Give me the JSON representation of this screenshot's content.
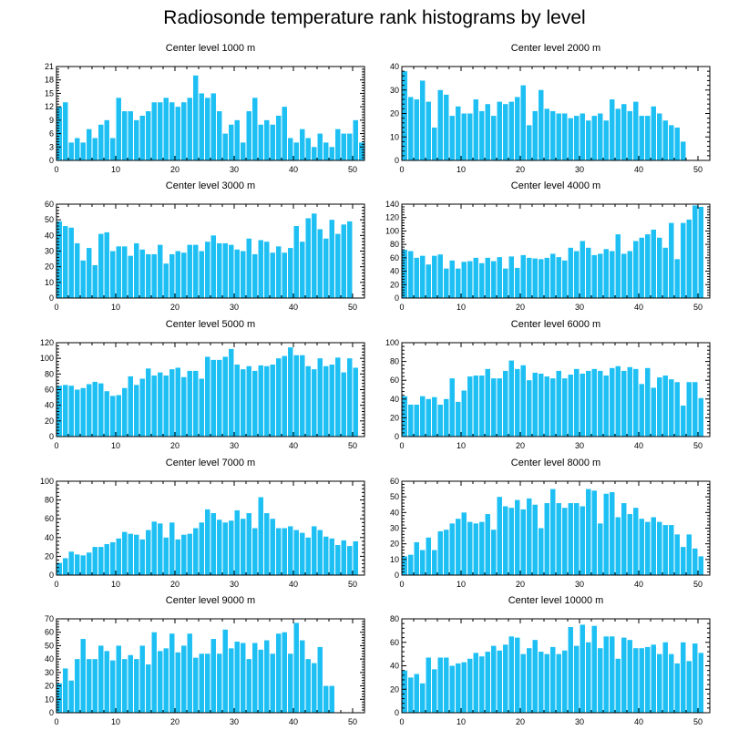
{
  "title": "Radiosonde temperature rank histograms by level",
  "colors": {
    "bar": "#1ec0f4",
    "frame": "#000000"
  },
  "chart_data": [
    {
      "type": "bar",
      "title": "Center level 1000 m",
      "xticks": [
        0,
        10,
        20,
        30,
        40,
        50
      ],
      "xlim": [
        0,
        52
      ],
      "ylim": [
        0,
        21
      ],
      "yticks": [
        0,
        3,
        6,
        9,
        12,
        15,
        18,
        21
      ],
      "values": [
        12,
        13,
        4,
        5,
        4,
        7,
        5,
        8,
        9,
        5,
        14,
        11,
        11,
        9,
        10,
        11,
        13,
        13,
        14,
        13,
        12,
        13,
        14,
        19,
        15,
        14,
        15,
        11,
        6,
        8,
        9,
        4,
        11,
        14,
        8,
        9,
        8,
        10,
        12,
        5,
        4,
        7,
        5,
        3,
        6,
        4,
        3,
        7,
        6,
        6,
        9,
        4
      ]
    },
    {
      "type": "bar",
      "title": "Center level 2000 m",
      "xticks": [
        0,
        10,
        20,
        30,
        40,
        50
      ],
      "xlim": [
        0,
        52
      ],
      "ylim": [
        0,
        40
      ],
      "yticks": [
        0,
        10,
        20,
        30,
        40
      ],
      "values": [
        38,
        27,
        26,
        34,
        25,
        14,
        30,
        28,
        19,
        23,
        20,
        20,
        26,
        21,
        24,
        19,
        25,
        24,
        25,
        27,
        32,
        15,
        21,
        30,
        22,
        21,
        20,
        20,
        18,
        19,
        20,
        17,
        19,
        20,
        17,
        26,
        22,
        24,
        21,
        25,
        19,
        19,
        23,
        20,
        17,
        15,
        14,
        8,
        0,
        0,
        0,
        0
      ]
    },
    {
      "type": "bar",
      "title": "Center level 3000 m",
      "xticks": [
        0,
        10,
        20,
        30,
        40,
        50
      ],
      "xlim": [
        0,
        52
      ],
      "ylim": [
        0,
        60
      ],
      "yticks": [
        0,
        10,
        20,
        30,
        40,
        50,
        60
      ],
      "values": [
        49,
        46,
        45,
        35,
        24,
        32,
        21,
        41,
        42,
        30,
        33,
        33,
        27,
        35,
        31,
        28,
        28,
        34,
        22,
        28,
        30,
        29,
        34,
        34,
        30,
        36,
        40,
        35,
        35,
        34,
        31,
        30,
        38,
        28,
        37,
        36,
        29,
        33,
        29,
        32,
        46,
        36,
        51,
        54,
        44,
        38,
        50,
        41,
        47,
        49,
        0,
        0
      ]
    },
    {
      "type": "bar",
      "title": "Center level 4000 m",
      "xticks": [
        0,
        10,
        20,
        30,
        40,
        50
      ],
      "xlim": [
        0,
        52
      ],
      "ylim": [
        0,
        140
      ],
      "yticks": [
        0,
        20,
        40,
        60,
        80,
        100,
        120,
        140
      ],
      "values": [
        72,
        70,
        60,
        63,
        50,
        63,
        65,
        44,
        56,
        44,
        54,
        55,
        60,
        52,
        60,
        55,
        61,
        44,
        62,
        45,
        64,
        60,
        59,
        58,
        60,
        66,
        61,
        56,
        75,
        70,
        85,
        75,
        64,
        66,
        73,
        70,
        95,
        66,
        70,
        85,
        90,
        95,
        102,
        90,
        75,
        112,
        58,
        112,
        117,
        138,
        136,
        0
      ]
    },
    {
      "type": "bar",
      "title": "Center level 5000 m",
      "xticks": [
        0,
        10,
        20,
        30,
        40,
        50
      ],
      "xlim": [
        0,
        52
      ],
      "ylim": [
        0,
        120
      ],
      "yticks": [
        0,
        20,
        40,
        60,
        80,
        100,
        120
      ],
      "values": [
        65,
        66,
        65,
        60,
        62,
        67,
        70,
        68,
        58,
        52,
        53,
        62,
        77,
        66,
        74,
        87,
        78,
        82,
        78,
        86,
        88,
        76,
        84,
        84,
        74,
        102,
        98,
        98,
        102,
        112,
        92,
        86,
        90,
        84,
        91,
        90,
        92,
        100,
        103,
        114,
        104,
        104,
        90,
        86,
        100,
        90,
        92,
        101,
        82,
        100,
        88,
        0
      ]
    },
    {
      "type": "bar",
      "title": "Center level 6000 m",
      "xticks": [
        0,
        10,
        20,
        30,
        40,
        50
      ],
      "xlim": [
        0,
        52
      ],
      "ylim": [
        0,
        100
      ],
      "yticks": [
        0,
        20,
        40,
        60,
        80,
        100
      ],
      "values": [
        43,
        34,
        34,
        43,
        40,
        42,
        34,
        40,
        62,
        37,
        49,
        64,
        65,
        65,
        72,
        62,
        62,
        70,
        81,
        72,
        76,
        60,
        68,
        67,
        64,
        62,
        70,
        62,
        66,
        72,
        67,
        70,
        72,
        70,
        65,
        73,
        75,
        70,
        74,
        72,
        56,
        73,
        52,
        63,
        65,
        61,
        58,
        33,
        58,
        58,
        41,
        0
      ]
    },
    {
      "type": "bar",
      "title": "Center level 7000 m",
      "xticks": [
        0,
        10,
        20,
        30,
        40,
        50
      ],
      "xlim": [
        0,
        52
      ],
      "ylim": [
        0,
        100
      ],
      "yticks": [
        0,
        20,
        40,
        60,
        80,
        100
      ],
      "values": [
        13,
        18,
        25,
        22,
        21,
        24,
        30,
        30,
        33,
        35,
        39,
        46,
        44,
        43,
        38,
        48,
        57,
        55,
        40,
        56,
        38,
        43,
        44,
        50,
        56,
        70,
        66,
        59,
        56,
        58,
        69,
        60,
        66,
        50,
        83,
        66,
        60,
        50,
        50,
        52,
        48,
        45,
        40,
        52,
        48,
        41,
        39,
        32,
        37,
        31,
        36,
        0
      ]
    },
    {
      "type": "bar",
      "title": "Center level 8000 m",
      "xticks": [
        0,
        10,
        20,
        30,
        40,
        50
      ],
      "xlim": [
        0,
        52
      ],
      "ylim": [
        0,
        60
      ],
      "yticks": [
        0,
        10,
        20,
        30,
        40,
        50,
        60
      ],
      "values": [
        12,
        13,
        21,
        16,
        24,
        16,
        28,
        29,
        33,
        36,
        40,
        34,
        33,
        34,
        39,
        29,
        50,
        44,
        43,
        48,
        42,
        49,
        45,
        30,
        46,
        55,
        46,
        43,
        46,
        46,
        44,
        55,
        54,
        33,
        52,
        53,
        37,
        46,
        39,
        43,
        36,
        34,
        37,
        34,
        32,
        32,
        26,
        18,
        26,
        17,
        12,
        0
      ]
    },
    {
      "type": "bar",
      "title": "Center level 9000 m",
      "xticks": [
        0,
        10,
        20,
        30,
        40,
        50
      ],
      "xlim": [
        0,
        52
      ],
      "ylim": [
        0,
        70
      ],
      "yticks": [
        0,
        10,
        20,
        30,
        40,
        50,
        60,
        70
      ],
      "values": [
        22,
        33,
        24,
        40,
        55,
        40,
        40,
        50,
        46,
        39,
        50,
        40,
        43,
        40,
        50,
        36,
        60,
        46,
        48,
        59,
        45,
        50,
        59,
        41,
        44,
        44,
        55,
        44,
        62,
        48,
        53,
        52,
        40,
        52,
        47,
        54,
        44,
        59,
        60,
        44,
        67,
        54,
        40,
        37,
        49,
        20,
        20,
        0,
        0,
        0,
        0,
        0
      ]
    },
    {
      "type": "bar",
      "title": "Center level 10000 m",
      "xticks": [
        0,
        10,
        20,
        30,
        40,
        50
      ],
      "xlim": [
        0,
        52
      ],
      "ylim": [
        0,
        80
      ],
      "yticks": [
        0,
        20,
        40,
        60,
        80
      ],
      "values": [
        36,
        30,
        33,
        25,
        47,
        37,
        47,
        47,
        40,
        42,
        43,
        46,
        51,
        48,
        52,
        57,
        53,
        58,
        65,
        64,
        50,
        55,
        62,
        52,
        50,
        56,
        50,
        53,
        73,
        57,
        75,
        60,
        74,
        55,
        65,
        65,
        46,
        64,
        62,
        55,
        55,
        56,
        58,
        50,
        60,
        50,
        42,
        60,
        44,
        59,
        51,
        0
      ]
    }
  ]
}
